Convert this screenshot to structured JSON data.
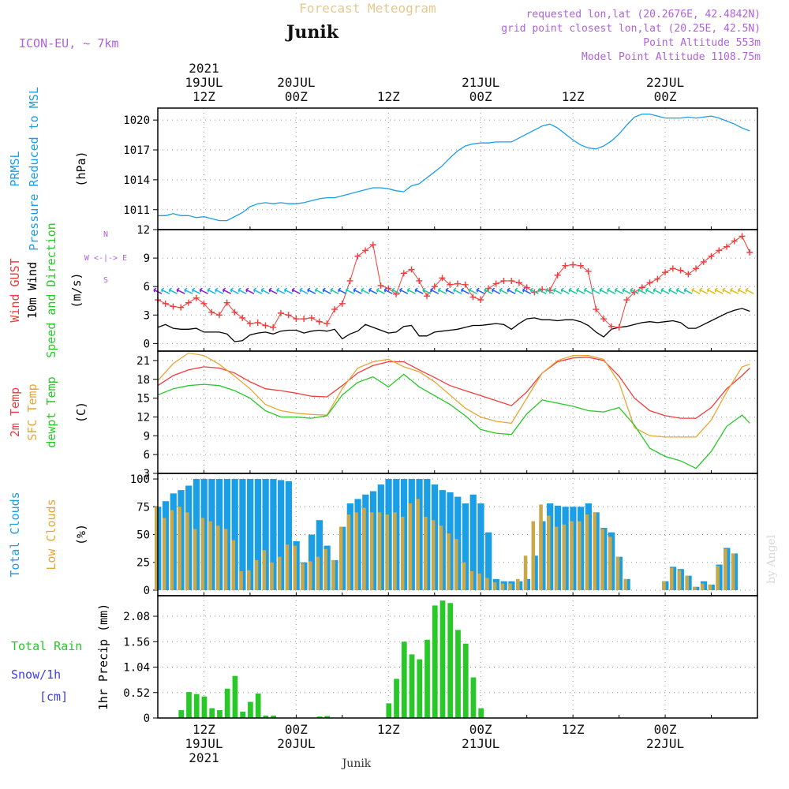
{
  "header": {
    "title": "Forecast Meteogram",
    "location": "Junik",
    "model": "ICON-EU, ~ 7km",
    "requested": "requested lon,lat (20.2676E, 42.4842N)",
    "grid_point": "grid point closest lon,lat (20.25E, 42.5N)",
    "point_altitude": "Point Altitude 553m",
    "model_altitude": "Model Point Altitude 1108.75m",
    "credit": "by Angel",
    "footer_location": "Junik"
  },
  "time_axis": {
    "top_labels": [
      {
        "lines": [
          "2021",
          "19JUL",
          "12Z"
        ],
        "hour": 12
      },
      {
        "lines": [
          "20JUL",
          "00Z"
        ],
        "hour": 24
      },
      {
        "lines": [
          "12Z"
        ],
        "hour": 36
      },
      {
        "lines": [
          "21JUL",
          "00Z"
        ],
        "hour": 48
      },
      {
        "lines": [
          "12Z"
        ],
        "hour": 60
      },
      {
        "lines": [
          "22JUL",
          "00Z"
        ],
        "hour": 72
      }
    ],
    "bottom_labels": [
      {
        "lines": [
          "12Z",
          "19JUL",
          "2021"
        ],
        "hour": 12
      },
      {
        "lines": [
          "00Z",
          "20JUL"
        ],
        "hour": 24
      },
      {
        "lines": [
          "12Z"
        ],
        "hour": 36
      },
      {
        "lines": [
          "00Z",
          "21JUL"
        ],
        "hour": 48
      },
      {
        "lines": [
          "12Z"
        ],
        "hour": 60
      },
      {
        "lines": [
          "00Z",
          "22JUL"
        ],
        "hour": 72
      }
    ]
  },
  "chart_data": [
    {
      "type": "line",
      "panel": "pressure",
      "ylabel_lines": [
        "PRMSL",
        "Pressure Reduced to MSL"
      ],
      "unit": "(hPa)",
      "yticks": [
        1011,
        1014,
        1017,
        1020
      ],
      "ylim": [
        1009,
        1021.2
      ],
      "x": [
        6,
        7,
        8,
        9,
        10,
        11,
        12,
        13,
        14,
        15,
        16,
        17,
        18,
        19,
        20,
        21,
        22,
        23,
        24,
        25,
        26,
        27,
        28,
        29,
        30,
        31,
        32,
        33,
        34,
        35,
        36,
        37,
        38,
        39,
        40,
        41,
        42,
        43,
        44,
        45,
        46,
        47,
        48,
        49,
        50,
        51,
        52,
        53,
        54,
        55,
        56,
        57,
        58,
        59,
        60,
        61,
        62,
        63,
        64,
        65,
        66,
        67,
        68,
        69,
        70,
        71,
        72,
        73,
        74,
        75,
        76,
        77,
        78,
        79,
        80,
        81,
        82,
        83
      ],
      "series": [
        {
          "values": [
            1010.4,
            1010.4,
            1010.6,
            1010.4,
            1010.4,
            1010.2,
            1010.3,
            1010.1,
            1009.9,
            1009.9,
            1010.3,
            1010.7,
            1011.3,
            1011.6,
            1011.7,
            1011.6,
            1011.7,
            1011.6,
            1011.6,
            1011.7,
            1011.9,
            1012.1,
            1012.2,
            1012.2,
            1012.4,
            1012.6,
            1012.8,
            1013.0,
            1013.2,
            1013.2,
            1013.1,
            1012.9,
            1012.8,
            1013.4,
            1013.6,
            1014.2,
            1014.8,
            1015.4,
            1016.2,
            1016.9,
            1017.4,
            1017.6,
            1017.7,
            1017.7,
            1017.8,
            1017.8,
            1017.8,
            1018.2,
            1018.6,
            1019.0,
            1019.4,
            1019.6,
            1019.2,
            1018.6,
            1018.0,
            1017.5,
            1017.2,
            1017.1,
            1017.4,
            1017.9,
            1018.6,
            1019.5,
            1020.3,
            1020.6,
            1020.6,
            1020.4,
            1020.2,
            1020.2,
            1020.2,
            1020.3,
            1020.2,
            1020.3,
            1020.4,
            1020.2,
            1019.9,
            1019.6,
            1019.2,
            1018.9
          ],
          "color": "#1a9ee6"
        }
      ]
    },
    {
      "type": "line",
      "panel": "wind",
      "ylabel_lines": [
        "Wind GUST",
        "10m Wind",
        "Speed and Direction"
      ],
      "unit": "(m/s)",
      "compass": [
        "N",
        "W <-|-> E",
        "S"
      ],
      "yticks": [
        0,
        3,
        6,
        9,
        12
      ],
      "ylim": [
        -0.8,
        12
      ],
      "x": [
        6,
        7,
        8,
        9,
        10,
        11,
        12,
        13,
        14,
        15,
        16,
        17,
        18,
        19,
        20,
        21,
        22,
        23,
        24,
        25,
        26,
        27,
        28,
        29,
        30,
        31,
        32,
        33,
        34,
        35,
        36,
        37,
        38,
        39,
        40,
        41,
        42,
        43,
        44,
        45,
        46,
        47,
        48,
        49,
        50,
        51,
        52,
        53,
        54,
        55,
        56,
        57,
        58,
        59,
        60,
        61,
        62,
        63,
        64,
        65,
        66,
        67,
        68,
        69,
        70,
        71,
        72,
        73,
        74,
        75,
        76,
        77,
        78,
        79,
        80,
        81,
        82,
        83
      ],
      "series": [
        {
          "name": "Wind GUST",
          "values": [
            4.6,
            4.2,
            3.9,
            3.8,
            4.3,
            4.8,
            4.2,
            3.3,
            3.0,
            4.3,
            3.3,
            2.7,
            2.1,
            2.2,
            1.9,
            1.7,
            3.2,
            3.0,
            2.6,
            2.6,
            2.7,
            2.3,
            2.1,
            3.6,
            4.2,
            6.6,
            9.2,
            9.8,
            10.4,
            6.1,
            5.8,
            5.2,
            7.4,
            7.8,
            6.6,
            5.0,
            6.0,
            6.9,
            6.2,
            6.3,
            6.2,
            4.9,
            4.6,
            5.8,
            6.3,
            6.6,
            6.6,
            6.4,
            5.9,
            5.4,
            5.7,
            5.6,
            7.2,
            8.2,
            8.3,
            8.2,
            7.6,
            3.6,
            2.6,
            1.8,
            1.7,
            4.6,
            5.4,
            5.9,
            6.4,
            6.8,
            7.5,
            7.9,
            7.7,
            7.3,
            7.9,
            8.6,
            9.2,
            9.8,
            10.2,
            10.8,
            11.3,
            9.6
          ],
          "color": "#f03c3c"
        },
        {
          "name": "10m Wind",
          "values": [
            1.7,
            2.0,
            1.6,
            1.5,
            1.5,
            1.6,
            1.2,
            1.2,
            1.2,
            1.0,
            0.2,
            0.3,
            0.9,
            1.1,
            1.2,
            1.0,
            1.3,
            1.4,
            1.4,
            1.1,
            1.3,
            1.4,
            1.3,
            1.5,
            0.5,
            1.0,
            1.3,
            2.0,
            1.7,
            1.4,
            1.1,
            1.2,
            1.8,
            1.9,
            0.8,
            0.8,
            1.2,
            1.3,
            1.4,
            1.5,
            1.7,
            1.9,
            1.9,
            2.0,
            2.1,
            2.0,
            1.5,
            2.1,
            2.6,
            2.7,
            2.5,
            2.5,
            2.4,
            2.5,
            2.5,
            2.3,
            1.9,
            1.2,
            0.7,
            1.5,
            1.7,
            1.8,
            2.0,
            2.2,
            2.3,
            2.2,
            2.3,
            2.4,
            2.2,
            1.6,
            1.6,
            2.0,
            2.4,
            2.8,
            3.2,
            3.5,
            3.7,
            3.4
          ],
          "color": "#000000"
        }
      ],
      "arrows_level": 5.5
    },
    {
      "type": "line",
      "panel": "temperature",
      "ylabel_lines": [
        "2m Temp",
        "SFC Temp",
        "dewpt Temp"
      ],
      "unit": "(C)",
      "yticks": [
        3,
        6,
        9,
        12,
        15,
        18,
        21
      ],
      "ylim": [
        3,
        22.5
      ],
      "x": [
        6,
        8,
        10,
        12,
        14,
        16,
        18,
        20,
        22,
        24,
        26,
        28,
        30,
        32,
        34,
        36,
        38,
        40,
        42,
        44,
        46,
        48,
        50,
        52,
        54,
        56,
        58,
        60,
        62,
        64,
        66,
        68,
        70,
        72,
        74,
        76,
        78,
        80,
        82,
        83
      ],
      "series": [
        {
          "name": "2m Temp",
          "values": [
            17.0,
            18.6,
            19.5,
            20.0,
            19.8,
            19.0,
            17.6,
            16.5,
            16.2,
            15.8,
            15.3,
            15.2,
            17.0,
            19.0,
            20.2,
            20.8,
            20.8,
            19.5,
            18.3,
            17.0,
            16.2,
            15.4,
            14.6,
            13.8,
            16.0,
            19.0,
            20.8,
            21.4,
            21.5,
            21.0,
            18.5,
            15.0,
            13.0,
            12.2,
            11.8,
            11.8,
            13.5,
            16.5,
            18.6,
            19.8
          ],
          "color": "#f03c3c"
        },
        {
          "name": "SFC Temp",
          "values": [
            17.8,
            20.5,
            22.2,
            21.8,
            20.4,
            18.5,
            16.5,
            14.0,
            13.0,
            12.6,
            12.4,
            12.3,
            16.5,
            19.8,
            20.8,
            21.2,
            20.0,
            19.2,
            17.6,
            15.5,
            13.4,
            12.0,
            11.3,
            11.0,
            15.0,
            19.0,
            21.0,
            21.8,
            21.8,
            21.2,
            17.5,
            10.3,
            9.0,
            8.8,
            8.8,
            8.8,
            11.5,
            16.0,
            20.0,
            20.4
          ],
          "color": "#e6a635"
        },
        {
          "name": "dewpt Temp",
          "values": [
            15.5,
            16.5,
            17.0,
            17.2,
            17.0,
            16.2,
            15.0,
            13.0,
            12.0,
            12.0,
            11.8,
            12.2,
            15.5,
            17.5,
            18.4,
            16.8,
            18.8,
            16.8,
            15.4,
            14.0,
            12.2,
            10.0,
            9.4,
            9.2,
            12.5,
            14.7,
            14.2,
            13.7,
            13.0,
            12.8,
            13.5,
            10.7,
            7.0,
            5.7,
            5.0,
            3.8,
            6.5,
            10.5,
            12.3,
            11.0
          ],
          "color": "#28c828"
        }
      ]
    },
    {
      "type": "bar",
      "panel": "clouds",
      "ylabel_lines": [
        "Total Clouds",
        "Low Clouds"
      ],
      "unit": "(%)",
      "yticks": [
        0,
        25,
        50,
        75,
        100
      ],
      "ylim": [
        -5,
        105
      ],
      "x": [
        6,
        7,
        8,
        9,
        10,
        11,
        12,
        13,
        14,
        15,
        16,
        17,
        18,
        19,
        20,
        21,
        22,
        23,
        24,
        25,
        26,
        27,
        28,
        29,
        30,
        31,
        32,
        33,
        34,
        35,
        36,
        37,
        38,
        39,
        40,
        41,
        42,
        43,
        44,
        45,
        46,
        47,
        48,
        49,
        50,
        51,
        52,
        53,
        54,
        55,
        56,
        57,
        58,
        59,
        60,
        61,
        62,
        63,
        64,
        65,
        66,
        67,
        68,
        69,
        70,
        71,
        72,
        73,
        74,
        75,
        76,
        77,
        78,
        79,
        80,
        81,
        82,
        83
      ],
      "series": [
        {
          "name": "Total Clouds",
          "values": [
            75,
            80,
            87,
            90,
            94,
            100,
            100,
            100,
            100,
            100,
            100,
            100,
            100,
            100,
            100,
            100,
            99,
            98,
            44,
            25,
            50,
            63,
            40,
            27,
            57,
            78,
            82,
            86,
            89,
            95,
            100,
            100,
            100,
            100,
            100,
            100,
            95,
            90,
            88,
            84,
            78,
            86,
            78,
            52,
            10,
            8,
            8,
            8,
            10,
            31,
            62,
            78,
            76,
            75,
            75,
            75,
            78,
            70,
            56,
            52,
            30,
            10,
            0,
            0,
            0,
            0,
            8,
            21,
            19,
            13,
            3,
            8,
            5,
            23,
            38,
            33,
            0,
            0
          ],
          "color": "#1a9ee6"
        },
        {
          "name": "Low Clouds",
          "values": [
            75,
            65,
            72,
            75,
            70,
            55,
            65,
            62,
            58,
            55,
            45,
            17,
            18,
            27,
            36,
            25,
            30,
            41,
            40,
            24,
            26,
            30,
            37,
            27,
            57,
            68,
            70,
            74,
            70,
            70,
            68,
            70,
            66,
            78,
            82,
            66,
            63,
            58,
            51,
            46,
            25,
            17,
            15,
            11,
            7,
            6,
            6,
            10,
            31,
            62,
            77,
            67,
            57,
            59,
            62,
            62,
            68,
            70,
            55,
            48,
            30,
            10,
            0,
            0,
            0,
            0,
            8,
            20,
            18,
            13,
            3,
            6,
            5,
            22,
            37,
            33,
            0,
            0
          ],
          "color": "#c8a848"
        }
      ]
    },
    {
      "type": "bar",
      "panel": "precip",
      "ylabel_lines": [
        "Total Rain",
        "Snow/1h",
        "[cm]"
      ],
      "yaxis_title": "1hr Precip (mm)",
      "yticks": [
        0,
        0.52,
        1.04,
        1.56,
        2.08
      ],
      "ylim": [
        0,
        2.5
      ],
      "x": [
        6,
        7,
        8,
        9,
        10,
        11,
        12,
        13,
        14,
        15,
        16,
        17,
        18,
        19,
        20,
        21,
        22,
        23,
        24,
        25,
        26,
        27,
        28,
        29,
        30,
        31,
        32,
        33,
        34,
        35,
        36,
        37,
        38,
        39,
        40,
        41,
        42,
        43,
        44,
        45,
        46,
        47,
        48,
        49,
        50,
        51,
        52,
        53,
        54,
        55,
        56,
        57,
        58,
        59,
        60,
        61,
        62,
        63,
        64,
        65,
        66,
        67,
        68,
        69,
        70,
        71,
        72,
        73,
        74,
        75,
        76,
        77,
        78,
        79,
        80,
        81,
        82,
        83
      ],
      "series": [
        {
          "name": "Total Rain",
          "values": [
            0,
            0,
            0,
            0.16,
            0.53,
            0.49,
            0.44,
            0.2,
            0.16,
            0.6,
            0.86,
            0.13,
            0.33,
            0.5,
            0.05,
            0.05,
            0,
            0,
            0,
            0,
            0,
            0.03,
            0.04,
            0,
            0,
            0,
            0,
            0,
            0,
            0,
            0.3,
            0.8,
            1.56,
            1.3,
            1.2,
            1.6,
            2.3,
            2.4,
            2.35,
            1.8,
            1.52,
            0.83,
            0.2,
            0,
            0,
            0,
            0,
            0,
            0,
            0,
            0,
            0,
            0,
            0,
            0,
            0,
            0,
            0,
            0,
            0,
            0,
            0,
            0,
            0,
            0,
            0,
            0,
            0,
            0,
            0,
            0,
            0,
            0,
            0,
            0,
            0,
            0,
            0
          ],
          "color": "#28c828"
        }
      ]
    }
  ]
}
